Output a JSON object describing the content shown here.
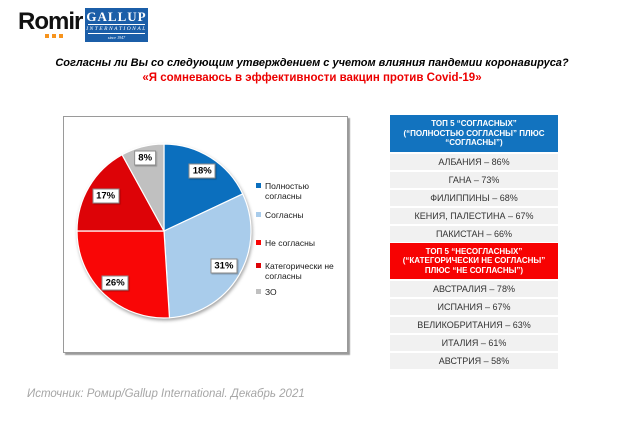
{
  "logo": {
    "romir": "Romir",
    "gallup_line1": "GALLUP",
    "gallup_line2": "INTERNATIONAL",
    "gallup_line3": "since 1947"
  },
  "title": {
    "question": "Согласны ли Вы со следующим утверждением с учетом влияния пандемии коронавируса?",
    "statement": "«Я сомневаюсь в эффективности вакцин против Covid-19»"
  },
  "chart_data": {
    "type": "pie",
    "title": "",
    "value_suffix": "%",
    "direction": "clockwise",
    "start_angle_deg": 0,
    "legend_position": "right",
    "slices": [
      {
        "label": "Полностью согласны",
        "value": 18,
        "color": "#0B6FBE",
        "label_r": 0.82
      },
      {
        "label": "Согласны",
        "value": 31,
        "color": "#A9CCEB",
        "label_r": 0.8
      },
      {
        "label": "Не согласны",
        "value": 26,
        "color": "#F90606",
        "label_r": 0.82
      },
      {
        "label": "Категорически не согласны",
        "value": 17,
        "color": "#DD0307",
        "label_r": 0.78
      },
      {
        "label": "ЗО",
        "value": 8,
        "color": "#C0C0C0",
        "label_r": 0.87
      }
    ]
  },
  "panels": {
    "agree": {
      "accent": "#1273BF",
      "header_lines": [
        "ТОП 5 “СОГЛАСНЫХ”",
        "(“ПОЛНОСТЬЮ СОГЛАСНЫ” ПЛЮС",
        "“СОГЛАСНЫ”)"
      ],
      "rows": [
        {
          "country": "АЛБАНИЯ",
          "value": "86%"
        },
        {
          "country": "ГАНА",
          "value": "73%"
        },
        {
          "country": "ФИЛИППИНЫ",
          "value": "68%"
        },
        {
          "country": "КЕНИЯ, ПАЛЕСТИНА",
          "value": "67%"
        },
        {
          "country": "ПАКИСТАН",
          "value": "66%"
        }
      ]
    },
    "disagree": {
      "accent": "#F70202",
      "header_lines": [
        "ТОП 5 “НЕСОГЛАСНЫХ”",
        "(“КАТЕГОРИЧЕСКИ НЕ СОГЛАСНЫ”",
        "ПЛЮС “НЕ СОГЛАСНЫ”)"
      ],
      "rows": [
        {
          "country": "АВСТРАЛИЯ",
          "value": "78%"
        },
        {
          "country": "ИСПАНИЯ",
          "value": "67%"
        },
        {
          "country": "ВЕЛИКОБРИТАНИЯ",
          "value": "63%"
        },
        {
          "country": "ИТАЛИЯ",
          "value": "61%"
        },
        {
          "country": "АВСТРИЯ",
          "value": "58%"
        }
      ]
    }
  },
  "footer": {
    "source": "Источник: Ромир/Gallup International. Декабрь 2021"
  }
}
